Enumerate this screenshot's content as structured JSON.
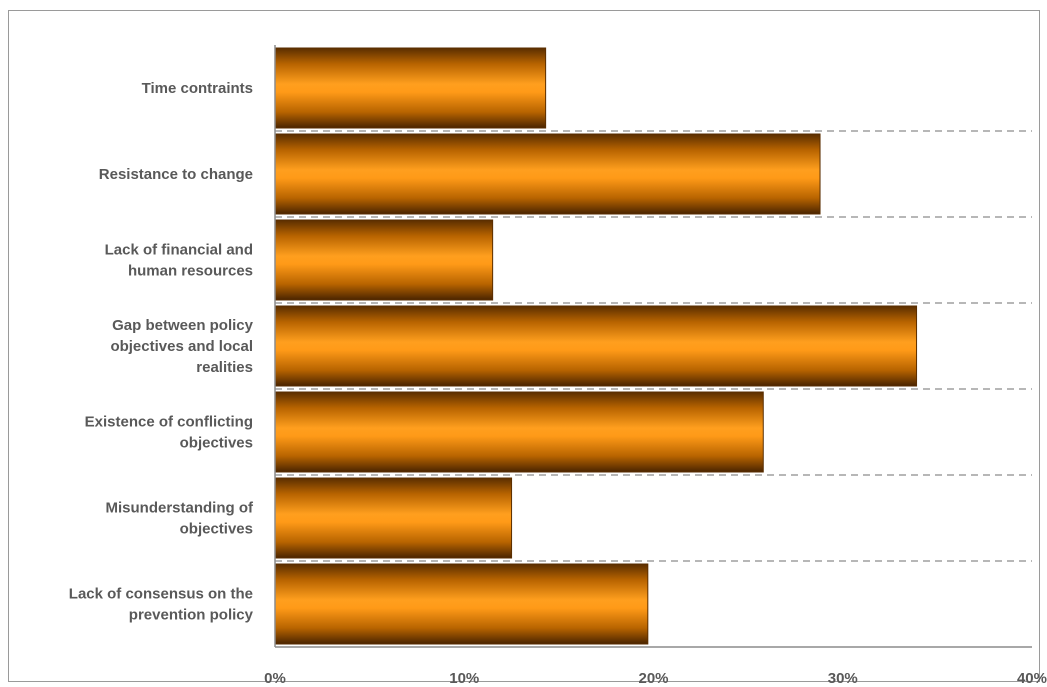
{
  "chart_data": {
    "type": "bar",
    "orientation": "horizontal",
    "categories": [
      "Time contraints",
      "Resistance to change",
      "Lack of financial and human resources",
      "Gap between policy objectives and local realities",
      "Existence of conflicting objectives",
      "Misunderstanding  of objectives",
      "Lack of consensus on the prevention policy"
    ],
    "category_lines": [
      [
        "Time contraints"
      ],
      [
        "Resistance to change"
      ],
      [
        "Lack of financial and",
        "human resources"
      ],
      [
        "Gap between policy",
        "objectives and local",
        "realities"
      ],
      [
        "Existence of conflicting",
        "objectives"
      ],
      [
        "Misunderstanding  of",
        "objectives"
      ],
      [
        "Lack of consensus on the",
        "prevention policy"
      ]
    ],
    "values": [
      14.3,
      28.8,
      11.5,
      33.9,
      25.8,
      12.5,
      19.7
    ],
    "x_ticks": [
      "0%",
      "10%",
      "20%",
      "30%",
      "40%"
    ],
    "xlim": [
      0,
      40
    ],
    "grid": "dashed horizontal separators between categories",
    "legend": "none",
    "bar_color": "#ff9a1a",
    "bar_edge_color": "#5a2e00",
    "grid_color": "#8c8c8c",
    "text_color": "#595959"
  }
}
